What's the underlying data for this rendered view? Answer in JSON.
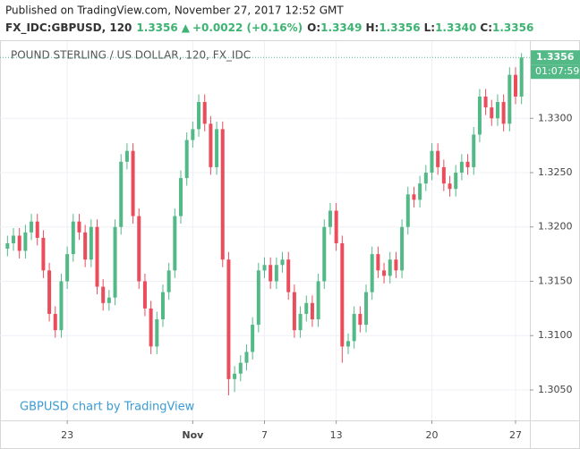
{
  "header": {
    "published": "Published on TradingView.com, November 27, 2017 12:52 GMT",
    "symbol": "FX_IDC:GBPUSD, 120",
    "last": "1.3356",
    "arrow": "▲",
    "change": "+0.0022 (+0.16%)",
    "open_label": "O:",
    "open": "1.3349",
    "high_label": "H:",
    "high": "1.3356",
    "low_label": "L:",
    "low": "1.3340",
    "close_label": "C:",
    "close": "1.3356"
  },
  "chart_data": {
    "type": "candlestick",
    "title": "POUND STERLING / US DOLLAR, 120, FX_IDC",
    "watermark": "GBPUSD chart by TradingView",
    "countdown": "01:07:59",
    "last_price": 1.3356,
    "up_color": "#53b987",
    "down_color": "#eb4d5c",
    "grid": true,
    "categories": [
      null,
      null,
      null,
      null,
      null,
      null,
      null,
      null,
      null,
      null,
      "23",
      null,
      null,
      null,
      null,
      null,
      null,
      null,
      null,
      null,
      null,
      null,
      null,
      null,
      null,
      null,
      null,
      null,
      null,
      null,
      null,
      "Nov",
      null,
      null,
      null,
      null,
      null,
      null,
      null,
      null,
      null,
      null,
      null,
      "7",
      null,
      null,
      null,
      null,
      null,
      null,
      null,
      null,
      null,
      null,
      null,
      "13",
      null,
      null,
      null,
      null,
      null,
      null,
      null,
      null,
      null,
      null,
      null,
      null,
      null,
      null,
      null,
      "20",
      null,
      null,
      null,
      null,
      null,
      null,
      null,
      null,
      null,
      null,
      null,
      null,
      null,
      "27",
      null
    ],
    "open": [
      1.318,
      1.3185,
      1.3192,
      1.3178,
      1.3195,
      1.3205,
      1.319,
      1.316,
      1.312,
      1.3105,
      1.315,
      1.3175,
      1.3205,
      1.3195,
      1.317,
      1.32,
      1.3145,
      1.313,
      1.3135,
      1.32,
      1.326,
      1.327,
      1.321,
      1.315,
      1.3125,
      1.309,
      1.3115,
      1.314,
      1.316,
      1.321,
      1.3245,
      1.328,
      1.329,
      1.3315,
      1.3295,
      1.3255,
      1.329,
      1.317,
      1.306,
      1.3065,
      1.3075,
      1.3085,
      1.311,
      1.316,
      1.3165,
      1.315,
      1.3165,
      1.317,
      1.314,
      1.3105,
      1.312,
      1.313,
      1.3115,
      1.315,
      1.32,
      1.3215,
      1.3185,
      1.309,
      1.3095,
      1.312,
      1.311,
      1.314,
      1.3175,
      1.316,
      1.3155,
      1.317,
      1.316,
      1.32,
      1.323,
      1.3225,
      1.324,
      1.325,
      1.327,
      1.3255,
      1.324,
      1.3235,
      1.325,
      1.326,
      1.3255,
      1.3285,
      1.332,
      1.331,
      1.33,
      1.3315,
      1.3295,
      1.334,
      1.332
    ],
    "high": [
      1.3192,
      1.3199,
      1.3199,
      1.3202,
      1.3212,
      1.3212,
      1.3197,
      1.3167,
      1.3127,
      1.3157,
      1.3182,
      1.3212,
      1.3212,
      1.3202,
      1.3207,
      1.3207,
      1.3152,
      1.3142,
      1.3207,
      1.3267,
      1.3277,
      1.3277,
      1.3217,
      1.3157,
      1.3132,
      1.3122,
      1.3147,
      1.3167,
      1.3217,
      1.3252,
      1.3287,
      1.3297,
      1.3322,
      1.3322,
      1.3302,
      1.3297,
      1.3297,
      1.3177,
      1.3072,
      1.3082,
      1.3092,
      1.3117,
      1.3167,
      1.3172,
      1.3172,
      1.3172,
      1.3177,
      1.3177,
      1.3147,
      1.3127,
      1.3137,
      1.3137,
      1.3157,
      1.3207,
      1.3222,
      1.3222,
      1.3192,
      1.3102,
      1.3127,
      1.3127,
      1.3147,
      1.3182,
      1.3182,
      1.3167,
      1.3177,
      1.3177,
      1.3207,
      1.3237,
      1.3237,
      1.3247,
      1.3257,
      1.3277,
      1.3277,
      1.3262,
      1.3247,
      1.3257,
      1.3267,
      1.3267,
      1.3292,
      1.3327,
      1.3327,
      1.3317,
      1.3322,
      1.3322,
      1.3347,
      1.3347,
      1.336
    ],
    "low": [
      1.3173,
      1.3178,
      1.3171,
      1.3171,
      1.3188,
      1.3183,
      1.3153,
      1.3113,
      1.3098,
      1.3098,
      1.3143,
      1.3168,
      1.3188,
      1.3163,
      1.3163,
      1.3138,
      1.3123,
      1.3123,
      1.3128,
      1.3193,
      1.3253,
      1.3203,
      1.3143,
      1.3118,
      1.3083,
      1.3083,
      1.3108,
      1.3133,
      1.3153,
      1.3203,
      1.3238,
      1.3273,
      1.3283,
      1.3288,
      1.3248,
      1.3248,
      1.3163,
      1.3045,
      1.3048,
      1.3058,
      1.3068,
      1.3078,
      1.3103,
      1.3153,
      1.3143,
      1.3143,
      1.3158,
      1.3133,
      1.3098,
      1.3098,
      1.3113,
      1.3108,
      1.3108,
      1.3143,
      1.3193,
      1.3178,
      1.3075,
      1.3083,
      1.3088,
      1.3103,
      1.3103,
      1.3133,
      1.3153,
      1.3148,
      1.3148,
      1.3153,
      1.3153,
      1.3193,
      1.3218,
      1.3218,
      1.3233,
      1.3243,
      1.3248,
      1.3233,
      1.3228,
      1.3228,
      1.3243,
      1.3248,
      1.3248,
      1.3278,
      1.3303,
      1.3293,
      1.3293,
      1.3288,
      1.3288,
      1.3313,
      1.3313
    ],
    "close": [
      1.3185,
      1.3192,
      1.3178,
      1.3195,
      1.3205,
      1.319,
      1.316,
      1.312,
      1.3105,
      1.315,
      1.3175,
      1.3205,
      1.3195,
      1.317,
      1.32,
      1.3145,
      1.313,
      1.3135,
      1.32,
      1.326,
      1.327,
      1.321,
      1.315,
      1.3125,
      1.309,
      1.3115,
      1.314,
      1.316,
      1.321,
      1.3245,
      1.328,
      1.329,
      1.3315,
      1.3295,
      1.3255,
      1.329,
      1.317,
      1.306,
      1.3065,
      1.3075,
      1.3085,
      1.311,
      1.316,
      1.3165,
      1.315,
      1.3165,
      1.317,
      1.314,
      1.3105,
      1.312,
      1.313,
      1.3115,
      1.315,
      1.32,
      1.3215,
      1.3185,
      1.309,
      1.3095,
      1.312,
      1.311,
      1.314,
      1.3175,
      1.316,
      1.3155,
      1.317,
      1.316,
      1.32,
      1.323,
      1.3225,
      1.324,
      1.325,
      1.327,
      1.3255,
      1.324,
      1.3235,
      1.325,
      1.326,
      1.3255,
      1.3285,
      1.332,
      1.331,
      1.33,
      1.3315,
      1.3295,
      1.334,
      1.332,
      1.3356
    ],
    "ylim": [
      1.3022,
      1.3371
    ],
    "yticks": [
      {
        "value": 1.305,
        "label": "1.3050"
      },
      {
        "value": 1.31,
        "label": "1.3100"
      },
      {
        "value": 1.315,
        "label": "1.3150"
      },
      {
        "value": 1.32,
        "label": "1.3200"
      },
      {
        "value": 1.325,
        "label": "1.3250"
      },
      {
        "value": 1.33,
        "label": "1.3300"
      }
    ]
  }
}
